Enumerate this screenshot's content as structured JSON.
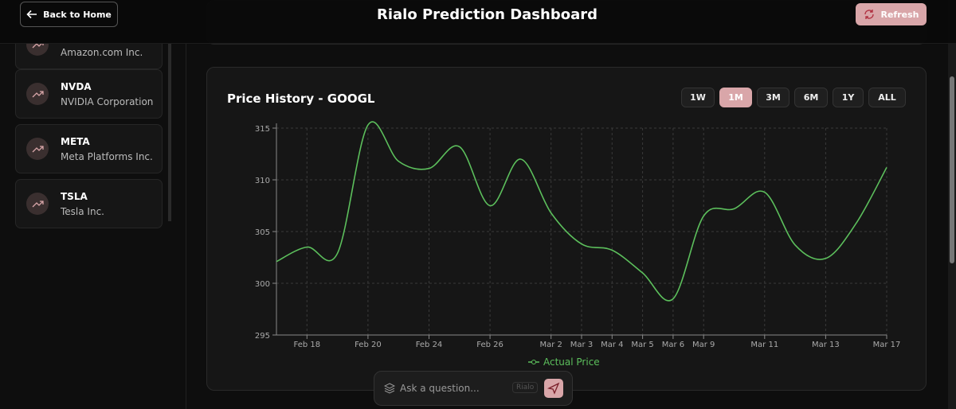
{
  "header": {
    "back": "Back to Home",
    "title": "Rialo Prediction Dashboard",
    "refresh": "Refresh"
  },
  "sidebar": {
    "stocks": [
      {
        "name": "Amazon.com Inc."
      },
      {
        "ticker": "NVDA",
        "name": "NVIDIA Corporation"
      },
      {
        "ticker": "META",
        "name": "Meta Platforms Inc."
      },
      {
        "ticker": "TSLA",
        "name": "Tesla Inc."
      }
    ]
  },
  "chart_data": {
    "type": "line",
    "title": "Price History - GOOGL",
    "ranges": [
      "1W",
      "1M",
      "3M",
      "6M",
      "1Y",
      "ALL"
    ],
    "active_range": 1,
    "categories": [
      null,
      "Feb 18",
      null,
      "Feb 20",
      null,
      "Feb 24",
      null,
      "Feb 26",
      null,
      "Mar 2",
      "Mar 3",
      "Mar 4",
      "Mar 5",
      "Mar 6",
      "Mar 9",
      null,
      "Mar 11",
      null,
      "Mar 13",
      null,
      "Mar 17"
    ],
    "series": [
      {
        "name": "Actual Price",
        "color": "#5cbf5c",
        "values": [
          302.1,
          303.5,
          302.9,
          315.3,
          311.8,
          311.1,
          313.2,
          307.5,
          312.0,
          306.8,
          303.8,
          303.2,
          301.0,
          298.5,
          306.5,
          307.2,
          308.8,
          303.7,
          302.4,
          305.8,
          311.2
        ]
      }
    ],
    "ylim": [
      295,
      315
    ],
    "yticks": [
      295,
      300,
      305,
      310,
      315
    ],
    "grid": true
  },
  "ask": {
    "placeholder": "Ask a question...",
    "badge": "Rialo"
  }
}
